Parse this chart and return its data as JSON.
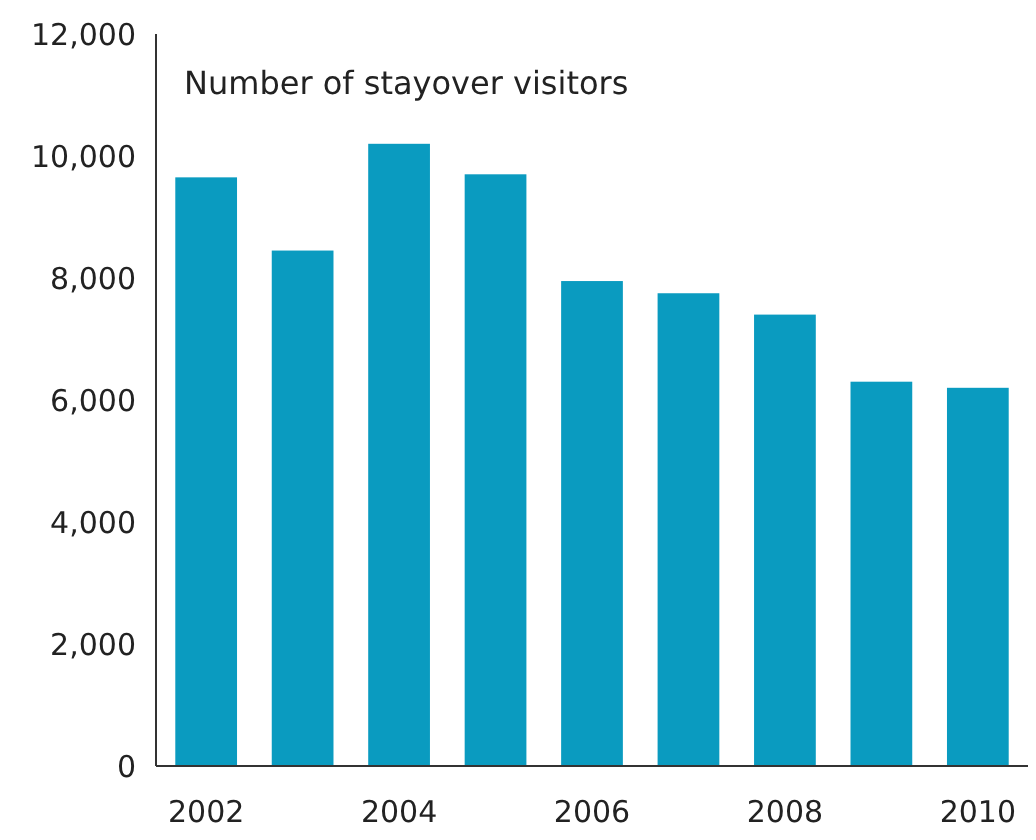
{
  "chart_data": {
    "type": "bar",
    "title": "Number of stayover visitors",
    "categories": [
      "2002",
      null,
      "2004",
      null,
      "2006",
      null,
      "2008",
      null,
      "2010"
    ],
    "values": [
      9650,
      8450,
      10200,
      9700,
      7950,
      7750,
      7400,
      6300,
      6200
    ],
    "color": "#0a9bc0",
    "ylim": [
      0,
      12000
    ],
    "yticks": [
      {
        "value": 0,
        "label": "0"
      },
      {
        "value": 2000,
        "label": "2,000"
      },
      {
        "value": 4000,
        "label": "4,000"
      },
      {
        "value": 6000,
        "label": "6,000"
      },
      {
        "value": 8000,
        "label": "8,000"
      },
      {
        "value": 10000,
        "label": "10,000"
      },
      {
        "value": 12000,
        "label": "12,000"
      }
    ],
    "grid": false
  }
}
